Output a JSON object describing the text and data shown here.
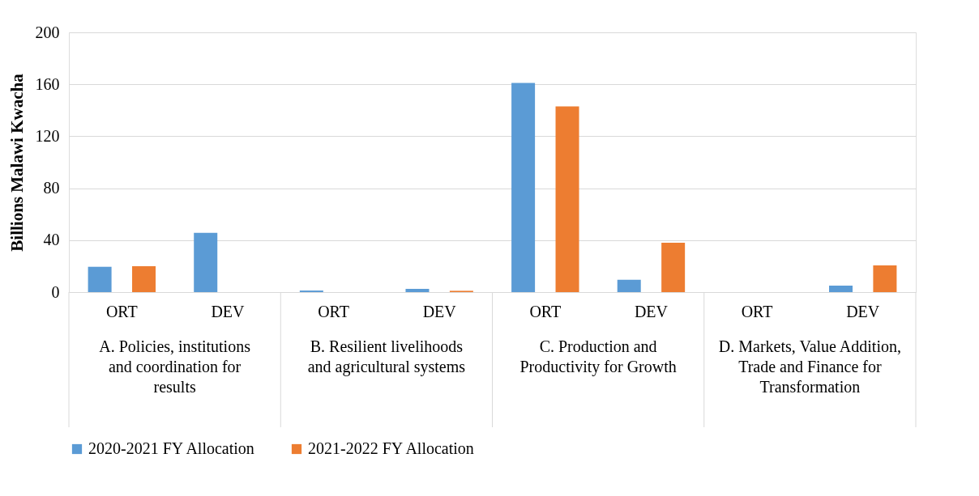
{
  "chart_data": {
    "type": "bar",
    "ylabel": "Billions Malawi Kwacha",
    "categories": [
      "ORT",
      "DEV",
      "ORT",
      "DEV",
      "ORT",
      "DEV",
      "ORT",
      "DEV"
    ],
    "annotations": [
      "A.  Policies, institutions and coordination for results",
      "B.  Resilient livelihoods and agricultural systems",
      "C.  Production and Productivity for Growth",
      "D.  Markets, Value Addition, Trade and Finance for Transformation"
    ],
    "series": [
      {
        "name": "2020-2021 FY Allocation",
        "color": "#5b9bd5",
        "values": [
          19.5,
          45.7,
          1.2,
          2.5,
          161,
          9.5,
          0,
          5
        ]
      },
      {
        "name": "2021-2022 FY Allocation",
        "color": "#ed7d31",
        "values": [
          20,
          0,
          0,
          1,
          143,
          38,
          0,
          20.5
        ]
      }
    ],
    "ylim": [
      0,
      200
    ],
    "yticks": [
      0,
      40,
      80,
      120,
      160,
      200
    ],
    "grid": "y",
    "legend": "bottom"
  }
}
